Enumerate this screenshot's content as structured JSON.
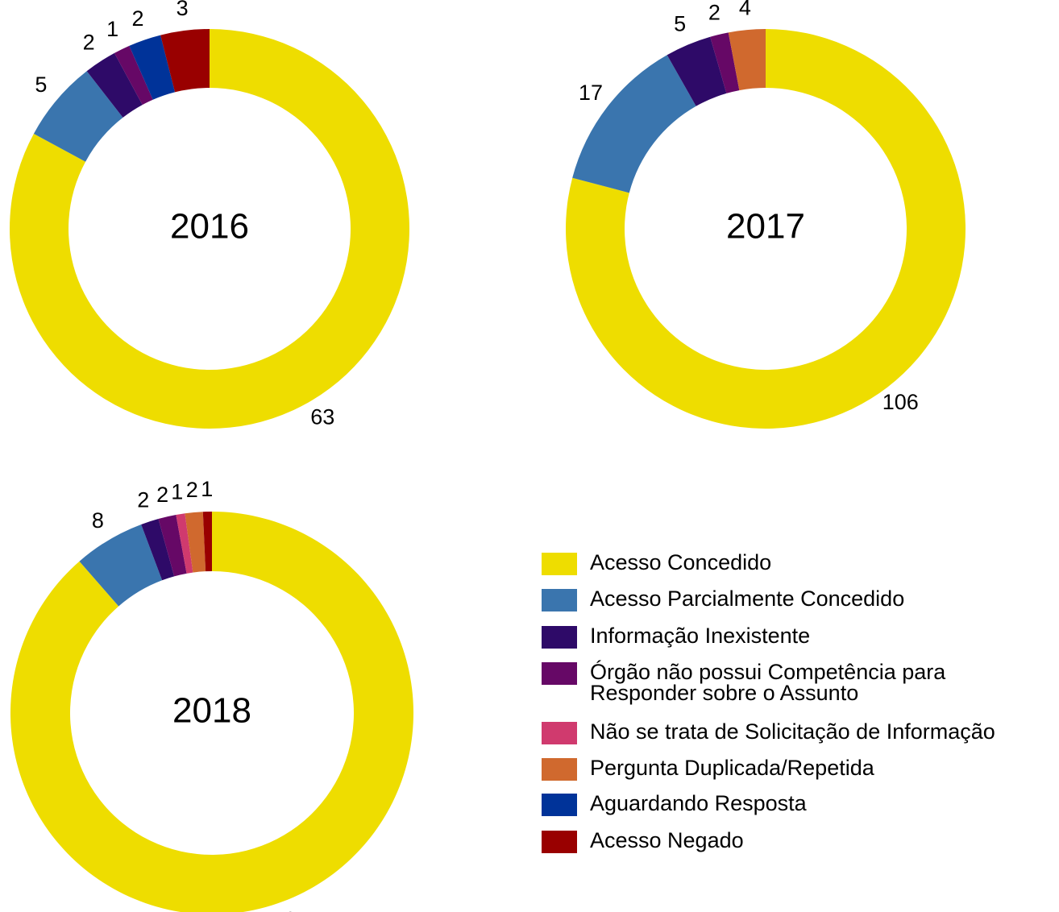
{
  "legend": {
    "labels": [
      "Acesso Concedido",
      "Acesso Parcialmente Concedido",
      "Informação Inexistente",
      "Órgão não possui Competência para Responder sobre o Assunto",
      "Não se trata de Solicitação de Informação",
      "Pergunta Duplicada/Repetida",
      "Aguardando Resposta",
      "Acesso Negado"
    ],
    "colors": [
      "#eedd00",
      "#3a75ae",
      "#2e0a68",
      "#660866",
      "#d03a6e",
      "#d0692e",
      "#003399",
      "#990000"
    ]
  },
  "chart_data": [
    {
      "type": "donut",
      "title": "2016",
      "values": [
        63,
        5,
        2,
        1,
        0,
        0,
        2,
        3
      ]
    },
    {
      "type": "donut",
      "title": "2017",
      "values": [
        106,
        17,
        5,
        2,
        0,
        4,
        0,
        0
      ]
    },
    {
      "type": "donut",
      "title": "2018",
      "values": [
        124,
        8,
        2,
        2,
        1,
        2,
        0,
        1
      ]
    }
  ]
}
